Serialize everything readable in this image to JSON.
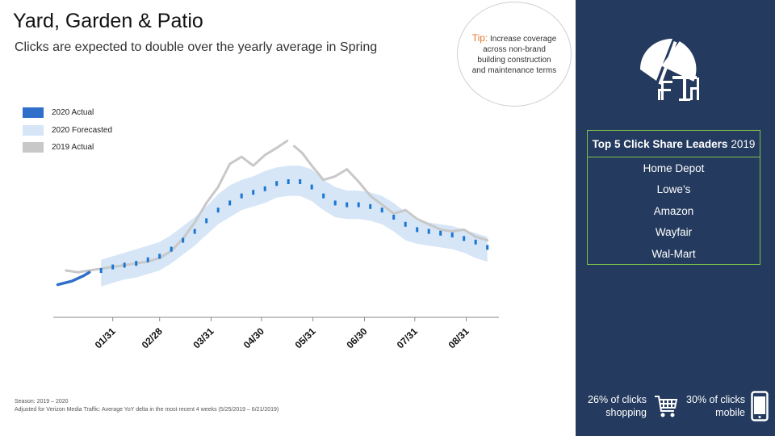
{
  "header": {
    "title": "Yard, Garden & Patio",
    "subtitle": "Clicks are expected to double over the yearly average in Spring"
  },
  "tip": {
    "label": "Tip:",
    "text": "Increase coverage across non-brand building construction and maintenance terms"
  },
  "legend": [
    {
      "label": "2020 Actual",
      "color": "#2f6fc9"
    },
    {
      "label": "2020 Forecasted",
      "color": "#d6e6f7"
    },
    {
      "label": "2019 Actual",
      "color": "#c8c8c8"
    }
  ],
  "notes": {
    "season": "Season: 2019 – 2020",
    "adjusted": "Adjusted for Verizon Media Traffic: Average YoY delta in the most recent 4 weeks (5/25/2019 – 6/21/2019)"
  },
  "panel": {
    "icon": "beach-umbrella-patio-icon",
    "leaders_title_bold": "Top 5 Click Share Leaders",
    "leaders_year": "2019",
    "leaders": [
      "Home Depot",
      "Lowe’s",
      "Amazon",
      "Wayfair",
      "Wal-Mart"
    ],
    "stat_shopping": "26% of clicks shopping",
    "stat_mobile": "30% of clicks mobile"
  },
  "chart_data": {
    "type": "line",
    "title": "",
    "xlabel": "",
    "ylabel": "",
    "x_tick_labels": [
      "01/31",
      "02/28",
      "03/31",
      "04/30",
      "05/31",
      "06/30",
      "07/31",
      "08/31"
    ],
    "x_tick_weeks": [
      5,
      9,
      13.4,
      17.7,
      22.1,
      26.5,
      30.8,
      35.2
    ],
    "y_axis": "unlabeled relative click volume (index)",
    "ylim": [
      0,
      100
    ],
    "grid": false,
    "legend_position": "left",
    "colors": {
      "actual_2020": "#2f6fc9",
      "forecast_band": "#d6e6f7",
      "forecast_marker": "#1976d2",
      "actual_2019": "#c8c8c8"
    },
    "series": [
      {
        "name": "2020 Actual",
        "x": [
          0.3,
          1.5,
          2.5,
          3.0
        ],
        "y": [
          17,
          19,
          22,
          24
        ]
      },
      {
        "name": "2020 Forecasted",
        "x": [
          4,
          5,
          6,
          7,
          8,
          9,
          10,
          11,
          12,
          13,
          14,
          15,
          16,
          17,
          18,
          19,
          20,
          21,
          22,
          23,
          24,
          25,
          26,
          27,
          28,
          29,
          30,
          31,
          32,
          33,
          34,
          35,
          36,
          37
        ],
        "y": [
          25,
          27,
          28,
          29,
          31,
          33,
          37,
          42,
          47,
          53,
          59,
          63,
          67,
          69,
          71,
          74,
          75,
          75,
          72,
          67,
          63,
          62,
          62,
          61,
          59,
          55,
          51,
          48,
          47,
          46,
          45,
          43,
          41,
          38
        ],
        "band_low": [
          16,
          18,
          20,
          21,
          23,
          25,
          29,
          34,
          39,
          45,
          51,
          55,
          59,
          61,
          63,
          66,
          67,
          67,
          64,
          59,
          55,
          54,
          54,
          53,
          51,
          47,
          42,
          40,
          39,
          38,
          37,
          35,
          32,
          30
        ],
        "band_high": [
          31,
          33,
          35,
          37,
          39,
          41,
          45,
          50,
          55,
          61,
          68,
          73,
          76,
          78,
          81,
          83,
          84,
          84,
          82,
          76,
          72,
          70,
          70,
          69,
          67,
          63,
          58,
          53,
          52,
          51,
          50,
          48,
          46,
          44
        ]
      },
      {
        "name": "2019 Actual",
        "x": [
          1,
          2,
          3,
          4,
          5,
          6,
          7,
          8,
          9,
          10,
          11,
          12,
          13,
          14,
          15,
          16,
          17,
          18,
          19,
          19.9,
          20.0,
          20.5,
          21.2,
          22,
          23,
          24,
          25,
          26,
          27,
          28,
          29,
          30,
          31,
          32,
          33,
          34,
          35,
          36,
          37
        ],
        "y": [
          25,
          24,
          25,
          26,
          27,
          28,
          29,
          30,
          32,
          36,
          43,
          52,
          63,
          72,
          85,
          89,
          84,
          90,
          94,
          98,
          null,
          95,
          91,
          84,
          76,
          78,
          82,
          75,
          67,
          62,
          57,
          59,
          54,
          51,
          48,
          47,
          48,
          44,
          42
        ]
      }
    ]
  }
}
